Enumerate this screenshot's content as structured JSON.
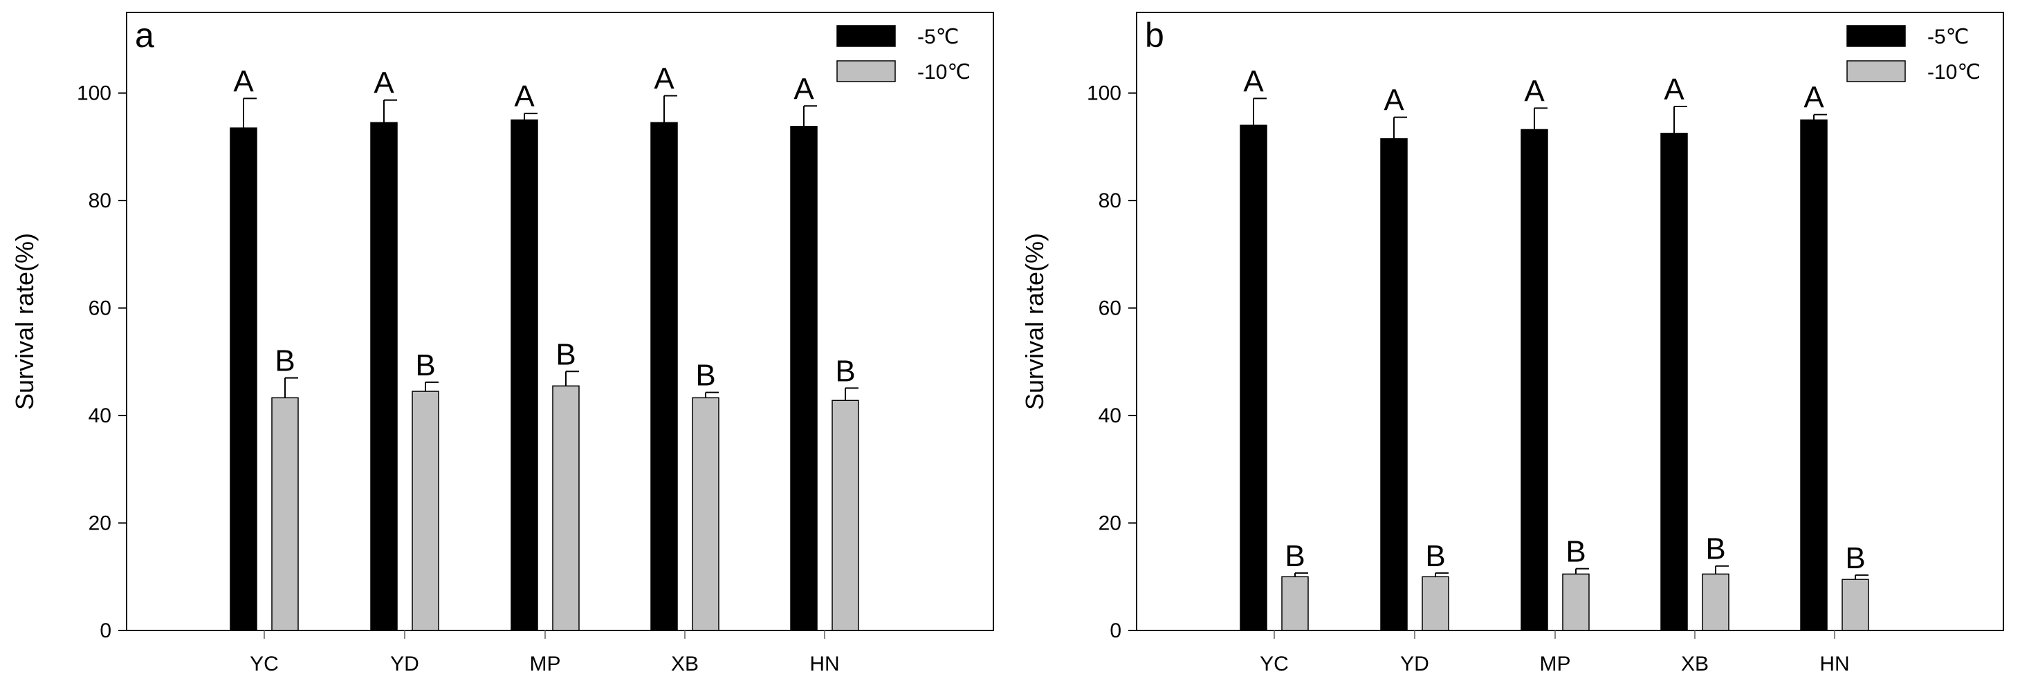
{
  "chart_data": [
    {
      "type": "bar",
      "panel_label": "a",
      "categories": [
        "YC",
        "YD",
        "MP",
        "XB",
        "HN"
      ],
      "series": [
        {
          "name": "-5℃",
          "color": "#000000",
          "values": [
            93.5,
            94.5,
            95,
            94.5,
            93.8
          ],
          "errors": [
            5.5,
            4.2,
            1.2,
            5,
            3.8
          ],
          "letters": [
            "A",
            "A",
            "A",
            "A",
            "A"
          ]
        },
        {
          "name": "-10℃",
          "color": "#c0c0c0",
          "values": [
            43.3,
            44.5,
            45.5,
            43.3,
            42.8
          ],
          "errors": [
            3.7,
            1.7,
            2.7,
            1,
            2.3
          ],
          "letters": [
            "B",
            "B",
            "B",
            "B",
            "B"
          ]
        }
      ],
      "ylabel": "Survival rate(%)",
      "ylim": [
        0,
        115
      ],
      "yticks": [
        0,
        20,
        40,
        60,
        80,
        100
      ],
      "legend": "top-right"
    },
    {
      "type": "bar",
      "panel_label": "b",
      "categories": [
        "YC",
        "YD",
        "MP",
        "XB",
        "HN"
      ],
      "series": [
        {
          "name": "-5℃",
          "color": "#000000",
          "values": [
            94,
            91.5,
            93.2,
            92.5,
            95
          ],
          "errors": [
            5,
            4,
            4,
            5,
            1
          ],
          "letters": [
            "A",
            "A",
            "A",
            "A",
            "A"
          ]
        },
        {
          "name": "-10℃",
          "color": "#c0c0c0",
          "values": [
            10,
            10,
            10.5,
            10.5,
            9.5
          ],
          "errors": [
            0.7,
            0.7,
            1,
            1.5,
            0.8
          ],
          "letters": [
            "B",
            "B",
            "B",
            "B",
            "B"
          ]
        }
      ],
      "ylabel": "Survival rate(%)",
      "ylim": [
        0,
        115
      ],
      "yticks": [
        0,
        20,
        40,
        60,
        80,
        100
      ],
      "legend": "top-right"
    }
  ]
}
